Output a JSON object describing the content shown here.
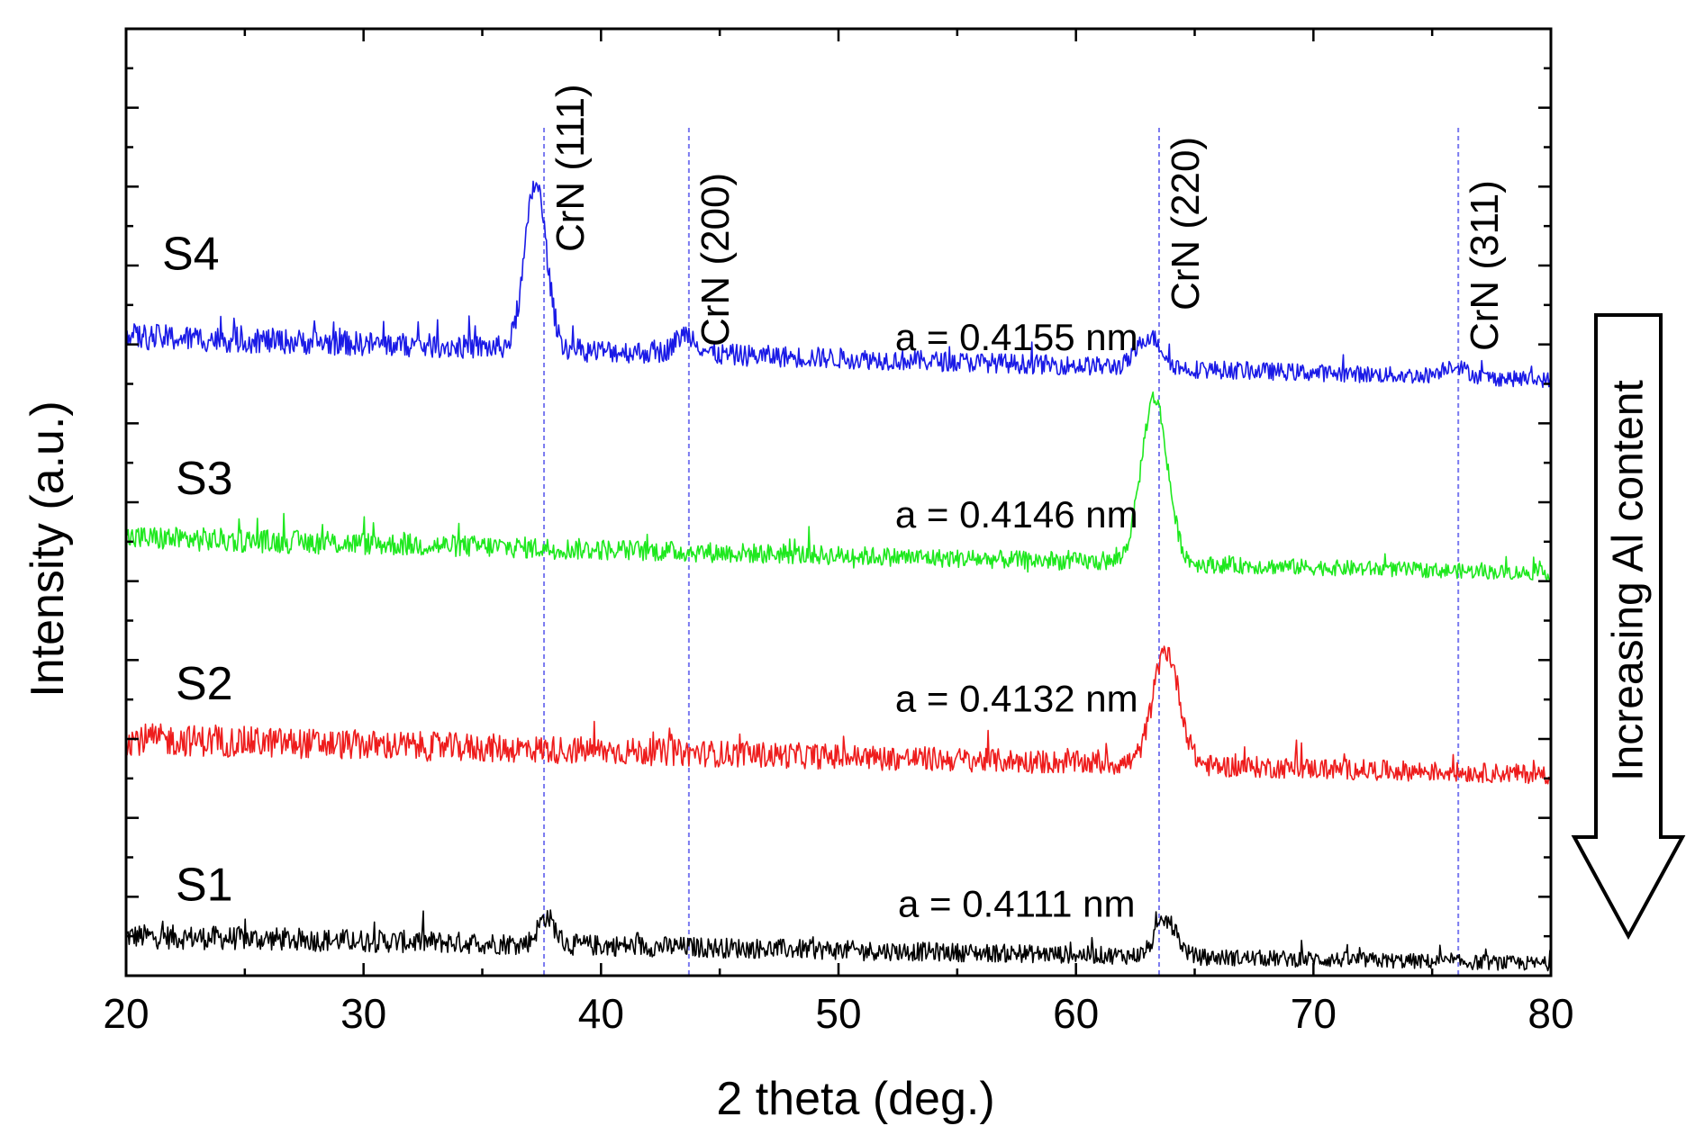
{
  "chart_data": {
    "type": "line",
    "title": "",
    "xlabel": "2 theta (deg.)",
    "ylabel": "Intensity (a.u.)",
    "xlim": [
      20,
      80
    ],
    "ylim": [
      0,
      12
    ],
    "yticks_labeled": false,
    "x_ticks": [
      20,
      30,
      40,
      50,
      60,
      70,
      80
    ],
    "x_tick_labels": [
      "20",
      "30",
      "40",
      "50",
      "60",
      "70",
      "80"
    ],
    "series": [
      {
        "name": "S1",
        "color": "#000000",
        "baseline_start": 0.5,
        "baseline_end": 0.15,
        "noise": 0.13,
        "peaks": [
          {
            "center": 37.7,
            "height": 0.35,
            "width": 0.35
          },
          {
            "center": 63.8,
            "height": 0.45,
            "width": 0.45
          }
        ],
        "lattice_label": "a = 0.4111 nm"
      },
      {
        "name": "S2",
        "color": "#ee1c1c",
        "baseline_start": 3.0,
        "baseline_end": 2.55,
        "noise": 0.17,
        "peaks": [
          {
            "center": 63.8,
            "height": 1.45,
            "width": 0.55
          }
        ],
        "lattice_label": "a = 0.4132 nm"
      },
      {
        "name": "S3",
        "color": "#1ee81e",
        "baseline_start": 5.55,
        "baseline_end": 5.1,
        "noise": 0.13,
        "peaks": [
          {
            "center": 63.3,
            "height": 2.1,
            "width": 0.55
          }
        ],
        "lattice_label": "a = 0.4146 nm"
      },
      {
        "name": "S4",
        "color": "#1a1ae6",
        "baseline_start": 8.1,
        "baseline_end": 7.55,
        "noise": 0.14,
        "peaks": [
          {
            "center": 37.25,
            "height": 2.1,
            "width": 0.45
          },
          {
            "center": 43.6,
            "height": 0.25,
            "width": 0.45
          },
          {
            "center": 63.1,
            "height": 0.4,
            "width": 0.5
          },
          {
            "center": 75.9,
            "height": 0.15,
            "width": 0.5
          }
        ],
        "lattice_label": "a = 0.4155 nm"
      }
    ],
    "reference_lines": [
      {
        "x": 37.6,
        "label": "CrN (111)"
      },
      {
        "x": 43.7,
        "label": "CrN (200)"
      },
      {
        "x": 63.5,
        "label": "CrN (220)"
      },
      {
        "x": 76.1,
        "label": "CrN (311)"
      }
    ],
    "annotations": {
      "arrow_label": "Increasing Al content",
      "arrow_direction": "down"
    }
  }
}
